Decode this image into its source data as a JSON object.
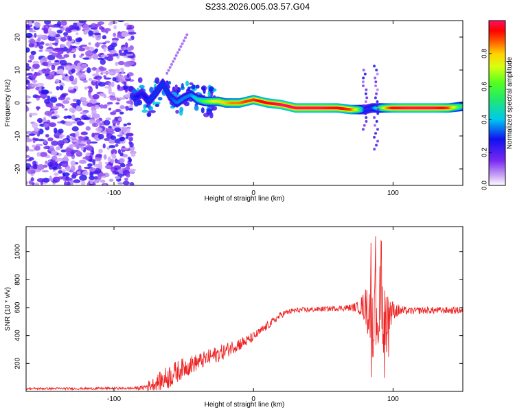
{
  "title": "S233.2026.005.03.57.G04",
  "chart_data": [
    {
      "type": "heatmap",
      "panel": "spectrogram",
      "xlabel": "Height of straight line (km)",
      "ylabel": "Frequency (Hz)",
      "xlim": [
        -163,
        150
      ],
      "ylim": [
        -25,
        25
      ],
      "x_ticks": [
        -100,
        0,
        100
      ],
      "x_tick_labels": [
        "-100",
        "0",
        "100"
      ],
      "y_ticks": [
        -20,
        -10,
        0,
        10,
        20
      ],
      "y_tick_labels": [
        "-20",
        "-10",
        "0",
        "10",
        "20"
      ],
      "colorbar": {
        "label": "Normalized spectral amplitude",
        "range": [
          0,
          1
        ],
        "ticks": [
          0.0,
          0.2,
          0.4,
          0.6,
          0.8
        ],
        "tick_labels": [
          "0.0",
          "0.2",
          "0.4",
          "0.6",
          "0.8"
        ]
      },
      "noise_region_x": [
        -163,
        -90
      ],
      "ridge": {
        "x": [
          -85,
          -80,
          -75,
          -70,
          -65,
          -60,
          -55,
          -50,
          -45,
          -40,
          -35,
          -30,
          -25,
          -20,
          -15,
          -10,
          -5,
          0,
          5,
          10,
          20,
          30,
          40,
          50,
          60,
          70,
          75,
          80,
          85,
          90,
          95,
          100,
          110,
          120,
          130,
          140,
          150
        ],
        "freq": [
          1.5,
          3,
          0.5,
          3,
          6,
          2,
          0,
          1.5,
          2.5,
          1,
          0.5,
          0.5,
          0.5,
          0,
          0,
          0,
          0.5,
          1,
          0.5,
          0,
          -0.5,
          -1.5,
          -1.5,
          -1.5,
          -1.5,
          -2,
          -2,
          -2,
          -1.5,
          -1.5,
          -1.5,
          -1.5,
          -1.5,
          -1.5,
          -1.5,
          -1.5,
          -1
        ],
        "amplitude": [
          0.3,
          0.25,
          0.3,
          0.3,
          0.3,
          0.3,
          0.35,
          0.35,
          0.35,
          0.45,
          0.6,
          0.7,
          0.75,
          0.8,
          0.85,
          0.85,
          0.9,
          0.9,
          0.95,
          0.95,
          1.0,
          1.0,
          1.0,
          1.0,
          0.95,
          0.9,
          0.7,
          0.3,
          0.3,
          0.5,
          0.8,
          0.95,
          1.0,
          1.0,
          1.0,
          0.9,
          0.5
        ]
      }
    },
    {
      "type": "line",
      "panel": "snr",
      "xlabel": "Height of straight line (km)",
      "ylabel": "SNR (10 * v/v)",
      "xlim": [
        -163,
        150
      ],
      "ylim": [
        0,
        1180
      ],
      "x_ticks": [
        -100,
        0,
        100
      ],
      "x_tick_labels": [
        "-100",
        "0",
        "100"
      ],
      "y_ticks": [
        200,
        400,
        600,
        800,
        1000
      ],
      "y_tick_labels": [
        "200",
        "400",
        "600",
        "800",
        "1000"
      ],
      "series": [
        {
          "name": "SNR",
          "color": "#ee2222",
          "x": [
            -163,
            -140,
            -120,
            -100,
            -90,
            -80,
            -75,
            -70,
            -65,
            -60,
            -55,
            -50,
            -45,
            -40,
            -35,
            -30,
            -25,
            -20,
            -15,
            -10,
            -5,
            0,
            5,
            10,
            15,
            20,
            25,
            30,
            40,
            50,
            60,
            70,
            75,
            80,
            85,
            90,
            95,
            100,
            110,
            120,
            130,
            140,
            150
          ],
          "values": [
            20,
            20,
            20,
            22,
            22,
            25,
            40,
            60,
            80,
            110,
            140,
            170,
            190,
            210,
            230,
            250,
            270,
            290,
            320,
            340,
            360,
            390,
            430,
            470,
            510,
            550,
            570,
            580,
            585,
            590,
            595,
            600,
            605,
            610,
            590,
            580,
            560,
            580,
            575,
            580,
            580,
            580,
            580
          ],
          "noise": [
            8,
            8,
            8,
            8,
            8,
            15,
            40,
            50,
            80,
            90,
            80,
            70,
            70,
            60,
            60,
            60,
            60,
            55,
            50,
            50,
            40,
            35,
            30,
            30,
            25,
            25,
            20,
            20,
            18,
            18,
            20,
            25,
            40,
            120,
            350,
            350,
            300,
            60,
            25,
            25,
            25,
            25,
            25
          ]
        }
      ]
    }
  ]
}
